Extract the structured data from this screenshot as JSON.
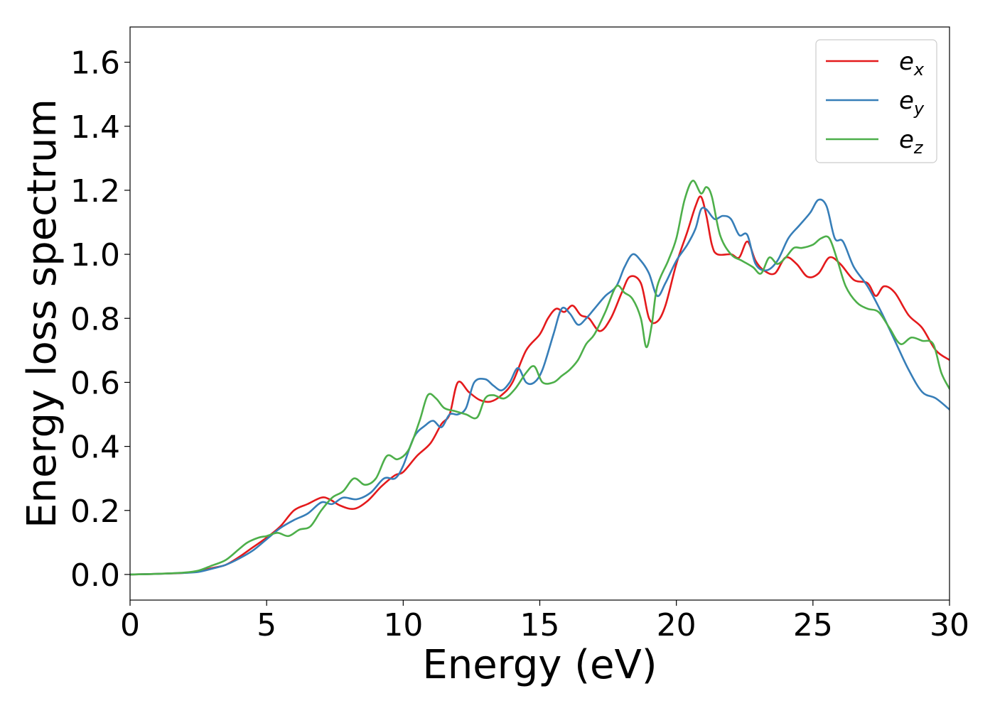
{
  "chart_data": {
    "type": "line",
    "title": "",
    "xlabel": "Energy (eV)",
    "ylabel": "Energy loss spectrum",
    "xlim": [
      0,
      30
    ],
    "ylim": [
      -0.08,
      1.71
    ],
    "xticks": [
      0,
      5,
      10,
      15,
      20,
      25,
      30
    ],
    "xtick_labels": [
      "0",
      "5",
      "10",
      "15",
      "20",
      "25",
      "30"
    ],
    "yticks": [
      0.0,
      0.2,
      0.4,
      0.6,
      0.8,
      1.0,
      1.2,
      1.4,
      1.6
    ],
    "ytick_labels": [
      "0.0",
      "0.2",
      "0.4",
      "0.6",
      "0.8",
      "1.0",
      "1.2",
      "1.4",
      "1.6"
    ],
    "grid": false,
    "legend_position": "top-right",
    "series": [
      {
        "name": "e",
        "subscript": "x",
        "color": "#e41a1c",
        "x": [
          0,
          1,
          2,
          2.5,
          3,
          3.5,
          4,
          4.5,
          5,
          5.5,
          6,
          6.5,
          7,
          7.3,
          7.7,
          8.2,
          8.7,
          9.2,
          9.7,
          10,
          10.5,
          11,
          11.4,
          11.7,
          12,
          12.4,
          12.8,
          13.2,
          13.6,
          14,
          14.5,
          15,
          15.3,
          15.6,
          15.9,
          16.2,
          16.5,
          16.8,
          17.2,
          17.6,
          18,
          18.3,
          18.7,
          19,
          19.3,
          19.6,
          20,
          20.4,
          20.7,
          20.9,
          21.1,
          21.3,
          21.5,
          22,
          22.3,
          22.6,
          22.9,
          23.2,
          23.6,
          24,
          24.4,
          24.8,
          25.2,
          25.6,
          26,
          26.5,
          27,
          27.3,
          27.6,
          28,
          28.5,
          29,
          29.5,
          30
        ],
        "y": [
          0,
          0.002,
          0.005,
          0.01,
          0.02,
          0.03,
          0.055,
          0.085,
          0.115,
          0.15,
          0.2,
          0.22,
          0.24,
          0.235,
          0.215,
          0.205,
          0.23,
          0.275,
          0.31,
          0.32,
          0.37,
          0.41,
          0.47,
          0.5,
          0.6,
          0.57,
          0.545,
          0.54,
          0.56,
          0.6,
          0.7,
          0.75,
          0.8,
          0.83,
          0.82,
          0.84,
          0.81,
          0.8,
          0.76,
          0.8,
          0.88,
          0.93,
          0.91,
          0.8,
          0.79,
          0.84,
          0.97,
          1.07,
          1.15,
          1.18,
          1.12,
          1.03,
          1.0,
          1.0,
          0.99,
          1.04,
          0.98,
          0.95,
          0.94,
          0.99,
          0.97,
          0.93,
          0.94,
          0.99,
          0.97,
          0.92,
          0.91,
          0.87,
          0.9,
          0.88,
          0.81,
          0.77,
          0.7,
          0.67
        ]
      },
      {
        "name": "e",
        "subscript": "y",
        "color": "#377eb8",
        "x": [
          0,
          1,
          2,
          2.5,
          3,
          3.5,
          4,
          4.5,
          5,
          5.5,
          6,
          6.5,
          7,
          7.4,
          7.8,
          8.3,
          8.8,
          9.3,
          9.7,
          10,
          10.4,
          10.8,
          11.1,
          11.4,
          11.7,
          12,
          12.3,
          12.6,
          13,
          13.3,
          13.6,
          13.9,
          14.2,
          14.5,
          14.8,
          15.1,
          15.5,
          15.8,
          16.1,
          16.4,
          16.7,
          17,
          17.4,
          17.8,
          18.1,
          18.4,
          18.7,
          19,
          19.3,
          19.6,
          20,
          20.4,
          20.7,
          20.9,
          21.1,
          21.4,
          21.7,
          22,
          22.3,
          22.6,
          22.9,
          23.3,
          23.7,
          24.1,
          24.5,
          24.9,
          25.2,
          25.5,
          25.8,
          26.1,
          26.5,
          27,
          27.5,
          28,
          28.5,
          29,
          29.5,
          30
        ],
        "y": [
          0,
          0.002,
          0.005,
          0.008,
          0.018,
          0.03,
          0.05,
          0.075,
          0.11,
          0.145,
          0.17,
          0.19,
          0.225,
          0.22,
          0.24,
          0.235,
          0.255,
          0.3,
          0.3,
          0.34,
          0.43,
          0.465,
          0.48,
          0.46,
          0.5,
          0.5,
          0.52,
          0.6,
          0.61,
          0.59,
          0.575,
          0.6,
          0.645,
          0.6,
          0.6,
          0.64,
          0.75,
          0.83,
          0.815,
          0.78,
          0.8,
          0.83,
          0.87,
          0.9,
          0.96,
          1.0,
          0.98,
          0.94,
          0.87,
          0.91,
          0.98,
          1.03,
          1.08,
          1.14,
          1.14,
          1.11,
          1.12,
          1.11,
          1.06,
          1.06,
          0.97,
          0.95,
          0.98,
          1.05,
          1.09,
          1.13,
          1.17,
          1.15,
          1.05,
          1.04,
          0.96,
          0.9,
          0.82,
          0.73,
          0.64,
          0.57,
          0.55,
          0.515
        ]
      },
      {
        "name": "e",
        "subscript": "z",
        "color": "#4daf4a",
        "x": [
          0,
          1,
          2,
          2.5,
          3,
          3.5,
          4,
          4.3,
          4.7,
          5,
          5.4,
          5.8,
          6.2,
          6.6,
          7,
          7.4,
          7.8,
          8.2,
          8.6,
          9,
          9.4,
          9.8,
          10.2,
          10.6,
          10.9,
          11.2,
          11.5,
          11.9,
          12.3,
          12.7,
          13,
          13.3,
          13.7,
          14.1,
          14.5,
          14.8,
          15.1,
          15.5,
          15.8,
          16.1,
          16.4,
          16.7,
          17,
          17.4,
          17.8,
          18.1,
          18.4,
          18.7,
          18.9,
          19.1,
          19.3,
          19.7,
          20,
          20.3,
          20.6,
          20.9,
          21.1,
          21.3,
          21.6,
          22,
          22.4,
          22.8,
          23.1,
          23.4,
          23.7,
          24,
          24.3,
          24.6,
          25,
          25.3,
          25.6,
          25.9,
          26.2,
          26.6,
          27,
          27.4,
          27.8,
          28.2,
          28.6,
          29,
          29.4,
          29.7,
          30
        ],
        "y": [
          0,
          0.002,
          0.006,
          0.012,
          0.028,
          0.045,
          0.08,
          0.1,
          0.115,
          0.12,
          0.13,
          0.12,
          0.14,
          0.15,
          0.2,
          0.24,
          0.26,
          0.3,
          0.28,
          0.3,
          0.37,
          0.36,
          0.39,
          0.48,
          0.56,
          0.55,
          0.52,
          0.51,
          0.5,
          0.49,
          0.55,
          0.56,
          0.55,
          0.58,
          0.63,
          0.65,
          0.6,
          0.6,
          0.62,
          0.64,
          0.67,
          0.72,
          0.75,
          0.82,
          0.9,
          0.88,
          0.86,
          0.8,
          0.71,
          0.78,
          0.9,
          0.98,
          1.05,
          1.17,
          1.23,
          1.19,
          1.21,
          1.18,
          1.06,
          1.0,
          0.98,
          0.96,
          0.94,
          0.99,
          0.97,
          0.99,
          1.02,
          1.02,
          1.03,
          1.05,
          1.05,
          0.98,
          0.9,
          0.85,
          0.83,
          0.82,
          0.77,
          0.72,
          0.74,
          0.73,
          0.72,
          0.63,
          0.58
        ]
      }
    ]
  }
}
